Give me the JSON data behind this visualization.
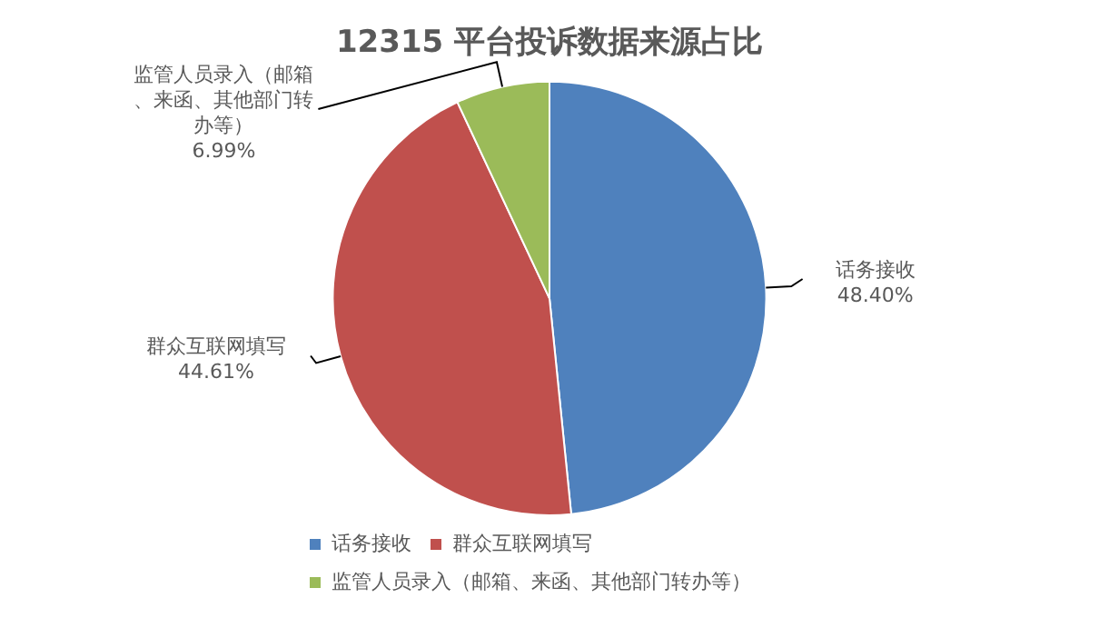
{
  "chart_data": {
    "type": "pie",
    "title": "12315 平台投诉数据来源占比",
    "categories": [
      "话务接收",
      "群众互联网填写",
      "监管人员录入（邮箱、来函、其他部门转办等）"
    ],
    "values": [
      48.4,
      44.61,
      6.99
    ],
    "value_labels": [
      "48.40%",
      "44.61%",
      "6.99%"
    ],
    "colors": [
      "#4f81bd",
      "#c0504d",
      "#9bbb59"
    ],
    "legend": "bottom"
  }
}
